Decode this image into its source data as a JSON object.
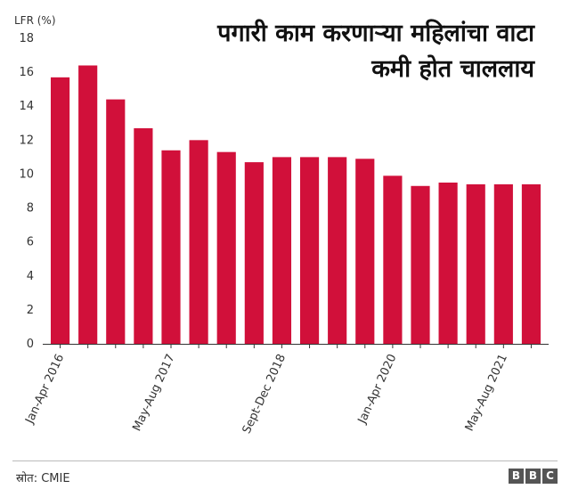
{
  "header": {
    "title_line1": "पगारी काम करणाऱ्या महिलांचा वाटा",
    "title_line2": "कमी होत चाललाय",
    "unit_label": "LFR (%)"
  },
  "footer": {
    "source": "स्रोत: CMIE",
    "logo_letters": [
      "B",
      "B",
      "C"
    ]
  },
  "chart_data": {
    "type": "bar",
    "bar_color": "#d1103a",
    "ylabel": "LFR (%)",
    "ylim": [
      0,
      18
    ],
    "yticks": [
      0,
      2,
      4,
      6,
      8,
      10,
      12,
      14,
      16,
      18
    ],
    "grid": false,
    "categories": [
      "Jan-Apr 2016",
      "",
      "",
      "",
      "May-Aug 2017",
      "",
      "",
      "",
      "Sept-Dec 2018",
      "",
      "",
      "",
      "Jan-Apr 2020",
      "",
      "",
      "",
      "May-Aug 2021",
      ""
    ],
    "values": [
      15.7,
      16.4,
      14.4,
      12.7,
      11.4,
      12.0,
      11.3,
      10.7,
      11.0,
      11.0,
      11.0,
      10.9,
      9.9,
      9.3,
      9.5,
      9.4,
      9.4,
      9.4
    ]
  }
}
